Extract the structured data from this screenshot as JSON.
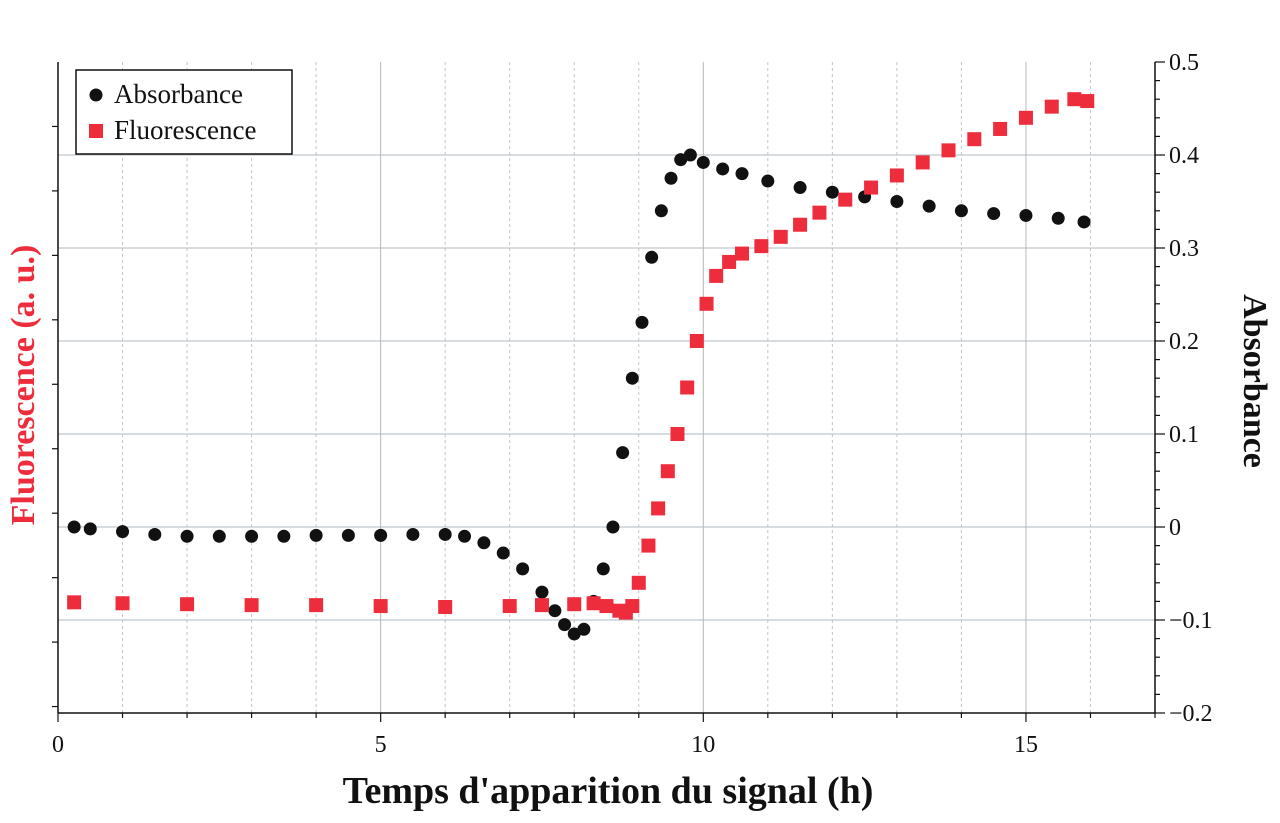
{
  "chart_data": {
    "type": "scatter",
    "xlabel": "Temps d'apparition du signal (h)",
    "ylabel_left": "Fluorescence (a. u.)",
    "ylabel_right": "Absorbance",
    "xlim": [
      0,
      17
    ],
    "ylim_right": [
      -0.2,
      0.5
    ],
    "x_ticks": [
      0,
      5,
      10,
      15
    ],
    "x_tick_labels": [
      "0",
      "5",
      "10",
      "15"
    ],
    "y_right_ticks": [
      -0.2,
      -0.1,
      0,
      0.1,
      0.2,
      0.3,
      0.4,
      0.5
    ],
    "y_right_tick_labels": [
      "−0.2",
      "−0.1",
      "0",
      "0.1",
      "0.2",
      "0.3",
      "0.4",
      "0.5"
    ],
    "grid": true,
    "legend_position": "top-left",
    "series": [
      {
        "name": "Absorbance",
        "marker": "circle",
        "color": "#111111",
        "axis": "right",
        "x": [
          0.25,
          0.5,
          1.0,
          1.5,
          2.0,
          2.5,
          3.0,
          3.5,
          4.0,
          4.5,
          5.0,
          5.5,
          6.0,
          6.3,
          6.6,
          6.9,
          7.2,
          7.5,
          7.7,
          7.85,
          8.0,
          8.15,
          8.3,
          8.45,
          8.6,
          8.75,
          8.9,
          9.05,
          9.2,
          9.35,
          9.5,
          9.65,
          9.8,
          10.0,
          10.3,
          10.6,
          11.0,
          11.5,
          12.0,
          12.5,
          13.0,
          13.5,
          14.0,
          14.5,
          15.0,
          15.5,
          15.9
        ],
        "y": [
          0.0,
          -0.002,
          -0.005,
          -0.008,
          -0.01,
          -0.01,
          -0.01,
          -0.01,
          -0.009,
          -0.009,
          -0.009,
          -0.008,
          -0.008,
          -0.01,
          -0.017,
          -0.028,
          -0.045,
          -0.07,
          -0.09,
          -0.105,
          -0.115,
          -0.11,
          -0.08,
          -0.045,
          0.0,
          0.08,
          0.16,
          0.22,
          0.29,
          0.34,
          0.375,
          0.395,
          0.4,
          0.392,
          0.385,
          0.38,
          0.372,
          0.365,
          0.36,
          0.355,
          0.35,
          0.345,
          0.34,
          0.337,
          0.335,
          0.332,
          0.328
        ]
      },
      {
        "name": "Fluorescence",
        "marker": "square",
        "color": "#ee2d3c",
        "axis": "left",
        "x": [
          0.25,
          1.0,
          2.0,
          3.0,
          4.0,
          5.0,
          6.0,
          7.0,
          7.5,
          8.0,
          8.3,
          8.5,
          8.7,
          8.8,
          8.9,
          9.0,
          9.15,
          9.3,
          9.45,
          9.6,
          9.75,
          9.9,
          10.05,
          10.2,
          10.4,
          10.6,
          10.9,
          11.2,
          11.5,
          11.8,
          12.2,
          12.6,
          13.0,
          13.4,
          13.8,
          14.2,
          14.6,
          15.0,
          15.4,
          15.75,
          15.95
        ],
        "y": [
          -0.081,
          -0.082,
          -0.083,
          -0.084,
          -0.084,
          -0.085,
          -0.086,
          -0.085,
          -0.084,
          -0.083,
          -0.082,
          -0.085,
          -0.09,
          -0.092,
          -0.085,
          -0.06,
          -0.02,
          0.02,
          0.06,
          0.1,
          0.15,
          0.2,
          0.24,
          0.27,
          0.285,
          0.294,
          0.302,
          0.312,
          0.325,
          0.338,
          0.352,
          0.365,
          0.378,
          0.392,
          0.405,
          0.417,
          0.428,
          0.44,
          0.452,
          0.46,
          0.458
        ]
      }
    ]
  }
}
